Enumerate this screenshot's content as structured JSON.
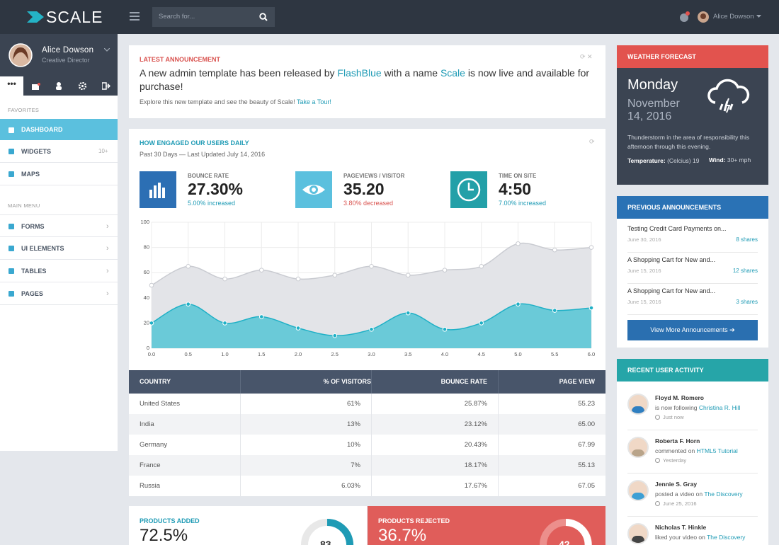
{
  "topbar": {
    "brand": "SCALE",
    "search_placeholder": "Search for...",
    "user": "Alice Dowson"
  },
  "sidebar": {
    "profile": {
      "name": "Alice Dowson",
      "role": "Creative Director"
    },
    "favorites_label": "FAVORITES",
    "favorites": [
      {
        "label": "DASHBOARD"
      },
      {
        "label": "WIDGETS",
        "badge": "10+"
      },
      {
        "label": "MAPS"
      }
    ],
    "main_menu_label": "MAIN MENU",
    "main_menu": [
      "FORMS",
      "UI ELEMENTS",
      "TABLES",
      "PAGES"
    ]
  },
  "announcement": {
    "label": "LATEST ANNOUNCEMENT",
    "text": [
      "A new admin template has been released by ",
      "FlashBlue",
      " with a name ",
      "Scale",
      " is now live and available for purchase!"
    ],
    "note": "Explore this new template and see the beauty of Scale!",
    "link": "Take a Tour!"
  },
  "engagement": {
    "title": "HOW ENGAGED OUR USERS DAILY",
    "subtitle": "Past 30 Days — Last Updated July 14, 2016",
    "stats": [
      {
        "label": "BOUNCE RATE",
        "value": "27.30%",
        "change": "5.00% increased"
      },
      {
        "label": "PAGEVIEWS / VISITOR",
        "value": "35.20",
        "change": "3.80% decreased"
      },
      {
        "label": "TIME ON SITE",
        "value": "4:50",
        "change": "7.00% increased"
      }
    ]
  },
  "chart_data": {
    "type": "area",
    "x": [
      0,
      0.5,
      1,
      1.5,
      2,
      2.5,
      3,
      3.5,
      4,
      4.5,
      5,
      5.5,
      6
    ],
    "series": [
      {
        "color": "#c9cbd1",
        "values": [
          50,
          65,
          55,
          62,
          55,
          58,
          65,
          58,
          62,
          65,
          83,
          78,
          80
        ]
      },
      {
        "color": "#1fb0c6",
        "values": [
          20,
          35,
          20,
          25,
          16,
          10,
          15,
          28,
          15,
          20,
          35,
          30,
          32
        ]
      }
    ],
    "xlim": [
      0,
      6
    ],
    "ylim": [
      0,
      100
    ],
    "xticks": [
      {
        "value": 0,
        "label": "0.0"
      },
      0.5,
      {
        "value": 1,
        "label": "1.0"
      },
      1.5,
      {
        "value": 2,
        "label": "2.0"
      },
      2.5,
      {
        "value": 3,
        "label": "3.0"
      },
      3.5,
      {
        "value": 4,
        "label": "4.0"
      },
      4.5,
      {
        "value": 5,
        "label": "5.0"
      },
      5.5,
      {
        "value": 6,
        "label": "6.0"
      }
    ],
    "yticks": [
      0,
      20,
      40,
      60,
      80,
      100
    ],
    "grid": true
  },
  "table": {
    "header": [
      "COUNTRY",
      "% OF VISITORS",
      "BOUNCE RATE",
      "PAGE VIEW"
    ],
    "rows": [
      [
        "United States",
        "61%",
        "25.87%",
        "55.23"
      ],
      [
        "India",
        "13%",
        "23.12%",
        "65.00"
      ],
      [
        "Germany",
        "10%",
        "20.43%",
        "67.99"
      ],
      [
        "France",
        "7%",
        "18.17%",
        "55.13"
      ],
      [
        "Russia",
        "6.03%",
        "17.67%",
        "67.05"
      ]
    ]
  },
  "products": [
    {
      "label": "PRODUCTS ADDED",
      "value": "72.5%",
      "donut": "83"
    },
    {
      "label": "PRODUCTS REJECTED",
      "value": "36.7%",
      "donut": "42"
    }
  ],
  "weather": {
    "title": "WEATHER FORECAST",
    "day": "Monday",
    "date": "November 14, 2016",
    "description": "Thunderstorm in the area of responsibility this afternoon through this evening.",
    "temperature_label": "Temperature:",
    "temperature": "(Celcius) 19",
    "wind_label": "Wind:",
    "wind": "30+ mph"
  },
  "previous_announcements": {
    "title": "PREVIOUS ANNOUNCEMENTS",
    "items": [
      {
        "title": "Testing Credit Card Payments on...",
        "date": "June 30, 2016",
        "shares": "8 shares"
      },
      {
        "title": "A Shopping Cart for New and...",
        "date": "June 15, 2016",
        "shares": "12 shares"
      },
      {
        "title": "A Shopping Cart for New and...",
        "date": "June 15, 2016",
        "shares": "3 shares"
      }
    ],
    "button": "View More Announcements"
  },
  "recent_activity": {
    "title": "RECENT USER ACTIVITY",
    "items": [
      {
        "name": "Floyd M. Romero",
        "action": "is now following",
        "target": "Christina R. Hill",
        "time": "Just now"
      },
      {
        "name": "Roberta F. Horn",
        "action": "commented on",
        "target": "HTML5 Tutorial",
        "time": "Yesterday"
      },
      {
        "name": "Jennie S. Gray",
        "action": "posted a video on",
        "target": "The Discovery",
        "time": "June 25, 2016"
      },
      {
        "name": "Nicholas T. Hinkle",
        "action": "liked your video on",
        "target": "The Discovery"
      }
    ]
  }
}
